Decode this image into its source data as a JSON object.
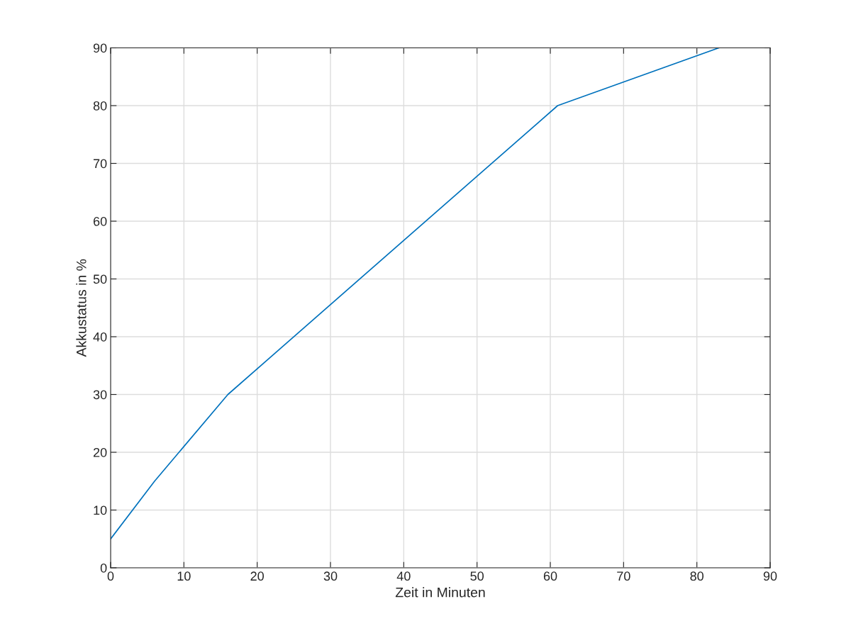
{
  "chart_data": {
    "type": "line",
    "xlabel": "Zeit in Minuten",
    "ylabel": "Akkustatus in %",
    "x": [
      0,
      6,
      16,
      61,
      83
    ],
    "series": [
      {
        "color": "#0072bd",
        "values": [
          5,
          15,
          30,
          80,
          90
        ]
      }
    ],
    "xlim": [
      0,
      90
    ],
    "xticks": [
      0,
      10,
      20,
      30,
      40,
      50,
      60,
      70,
      80,
      90
    ],
    "ylim": [
      0,
      90
    ],
    "yticks": [
      0,
      10,
      20,
      30,
      40,
      50,
      60,
      70,
      80,
      90
    ],
    "grid": true,
    "marker": "none",
    "line_style": "solid"
  }
}
